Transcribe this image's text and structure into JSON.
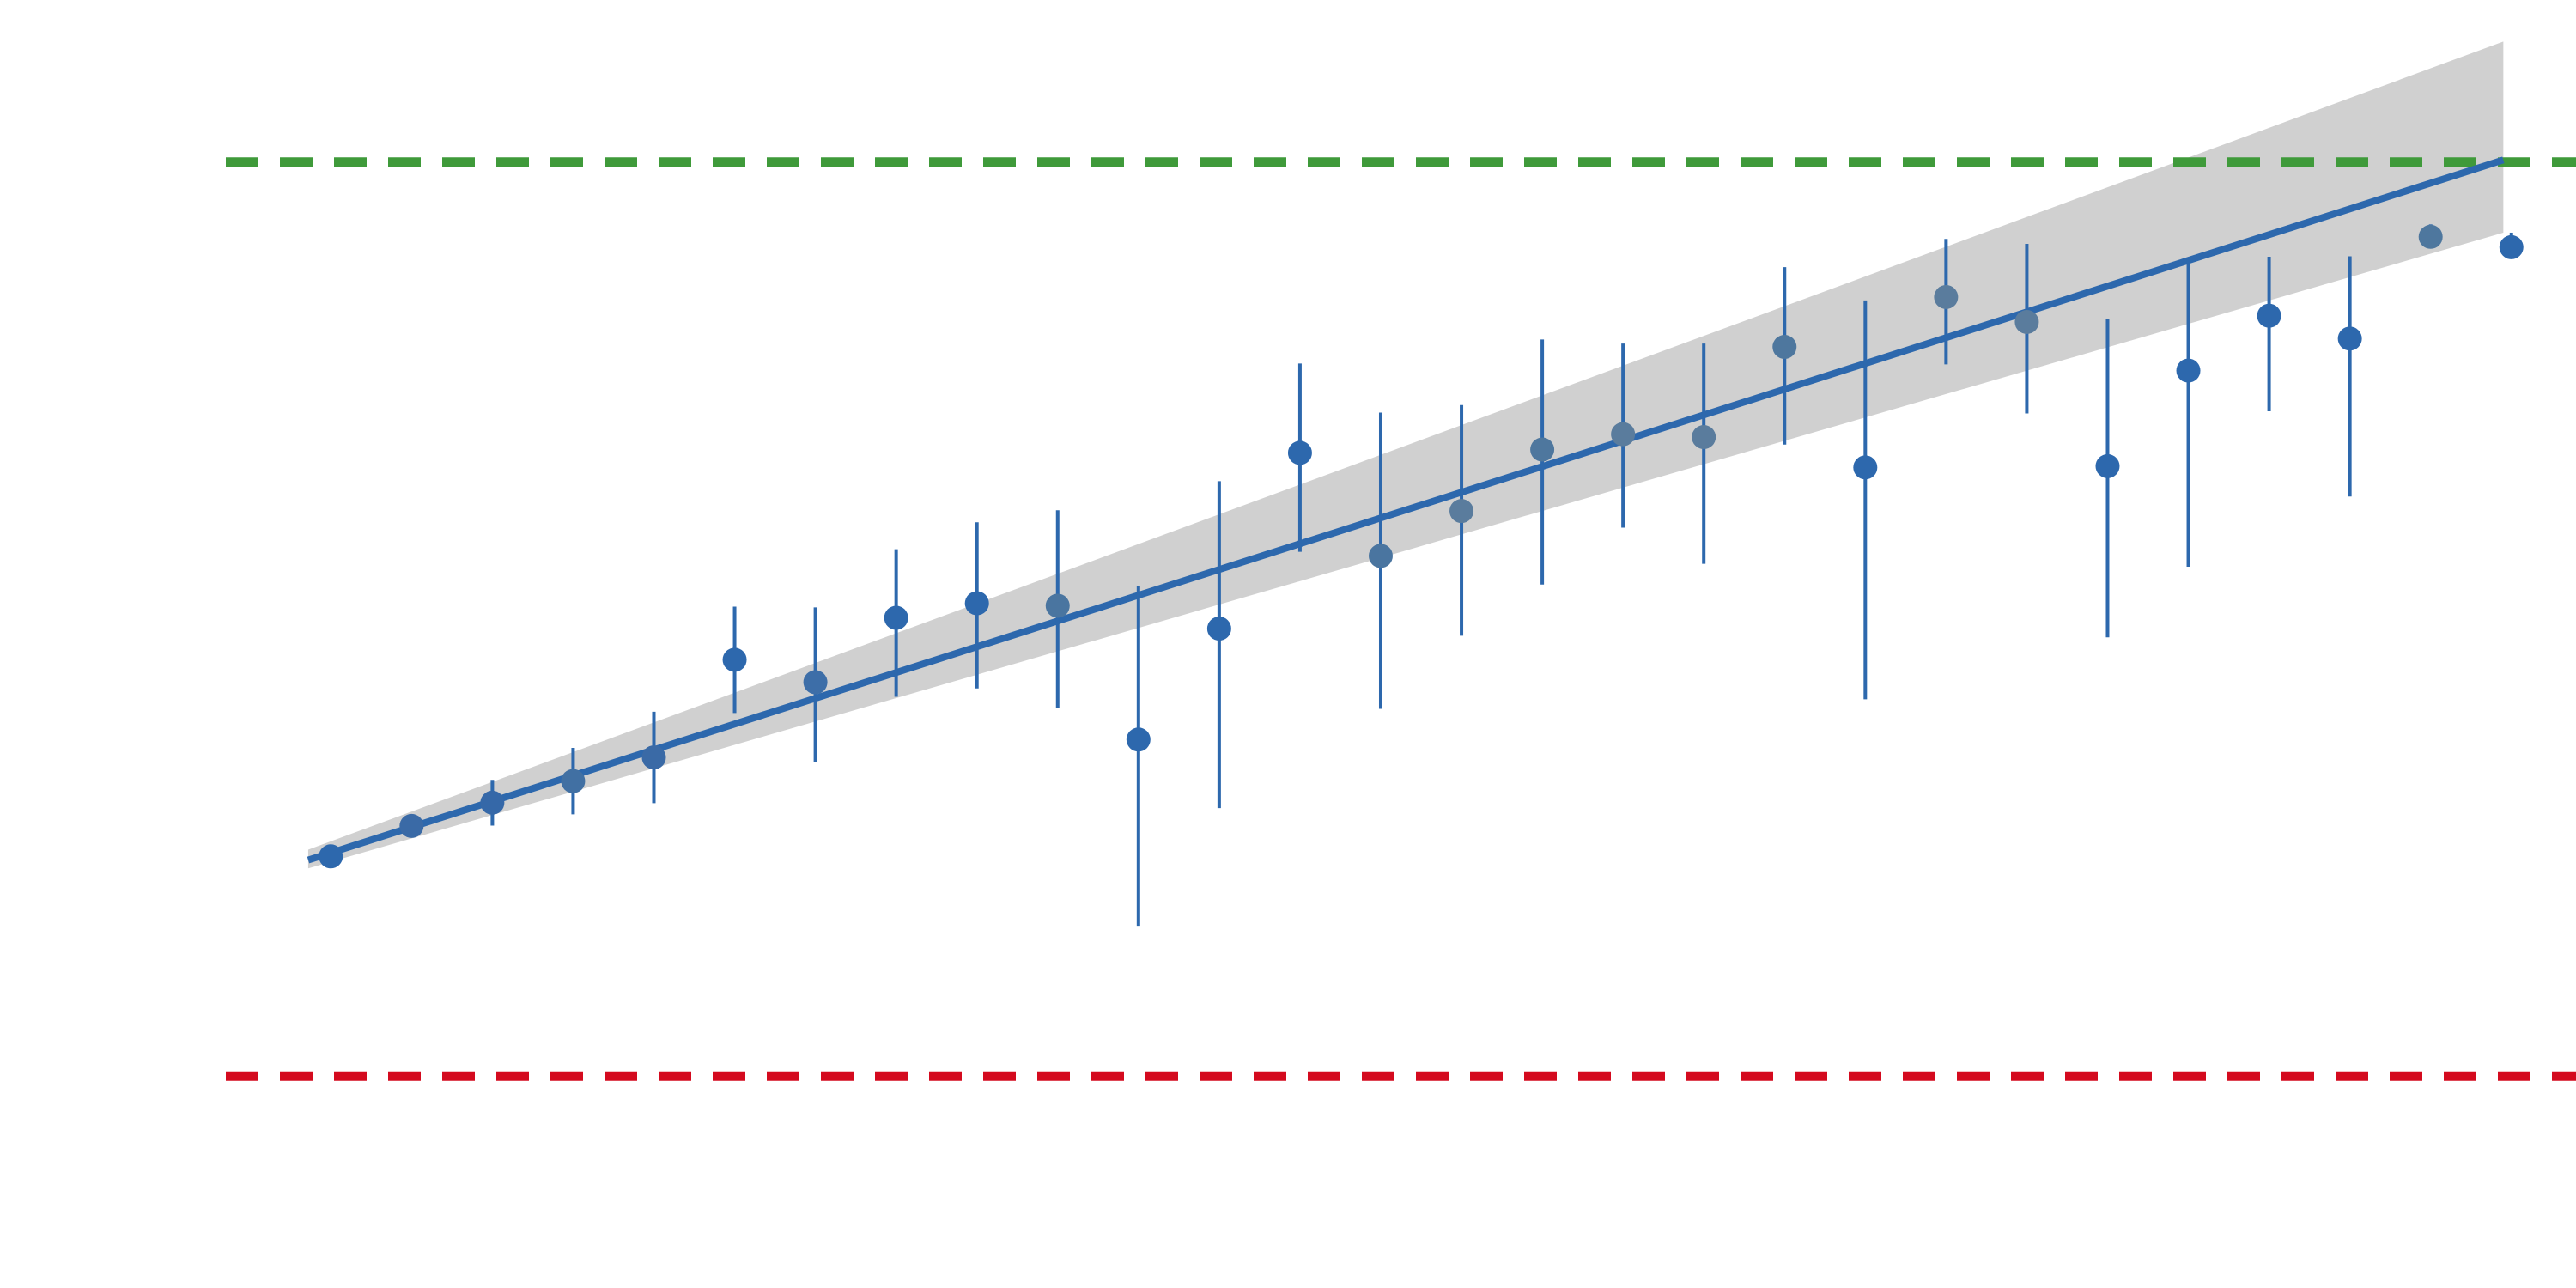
{
  "chart_data": {
    "type": "scatter",
    "title": "",
    "xlabel": "",
    "ylabel": "",
    "grid": false,
    "xlim": [
      -0.3,
      28.8
    ],
    "ylim": [
      -1.05,
      2.05
    ],
    "points": [
      {
        "x": 1,
        "y": -0.011,
        "err_lo": 0.0,
        "err_hi": 0.0,
        "color": "#2d68ad"
      },
      {
        "x": 2,
        "y": 0.062,
        "err_lo": 0.0,
        "err_hi": 0.018,
        "color": "#3a6aa6"
      },
      {
        "x": 3,
        "y": 0.118,
        "err_lo": 0.055,
        "err_hi": 0.055,
        "color": "#3568a8"
      },
      {
        "x": 4,
        "y": 0.17,
        "err_lo": 0.08,
        "err_hi": 0.08,
        "color": "#4170a3"
      },
      {
        "x": 5,
        "y": 0.227,
        "err_lo": 0.11,
        "err_hi": 0.11,
        "color": "#3a6aa6"
      },
      {
        "x": 6,
        "y": 0.462,
        "err_lo": 0.128,
        "err_hi": 0.128,
        "color": "#2d68ad"
      },
      {
        "x": 7,
        "y": 0.408,
        "err_lo": 0.192,
        "err_hi": 0.18,
        "color": "#3d6ea8"
      },
      {
        "x": 8,
        "y": 0.563,
        "err_lo": 0.19,
        "err_hi": 0.165,
        "color": "#2d68ad"
      },
      {
        "x": 9,
        "y": 0.598,
        "err_lo": 0.205,
        "err_hi": 0.195,
        "color": "#2d68ad"
      },
      {
        "x": 10,
        "y": 0.592,
        "err_lo": 0.245,
        "err_hi": 0.23,
        "color": "#4a75a0"
      },
      {
        "x": 11,
        "y": 0.27,
        "err_lo": 0.448,
        "err_hi": 0.37,
        "color": "#2d68ad"
      },
      {
        "x": 12,
        "y": 0.537,
        "err_lo": 0.432,
        "err_hi": 0.355,
        "color": "#2d68ad"
      },
      {
        "x": 13,
        "y": 0.96,
        "err_lo": 0.238,
        "err_hi": 0.215,
        "color": "#2d68ad"
      },
      {
        "x": 14,
        "y": 0.712,
        "err_lo": 0.368,
        "err_hi": 0.345,
        "color": "#4a75a0"
      },
      {
        "x": 15,
        "y": 0.82,
        "err_lo": 0.3,
        "err_hi": 0.255,
        "color": "#5a7c9d"
      },
      {
        "x": 16,
        "y": 0.968,
        "err_lo": 0.325,
        "err_hi": 0.265,
        "color": "#4e779e"
      },
      {
        "x": 17,
        "y": 1.005,
        "err_lo": 0.225,
        "err_hi": 0.218,
        "color": "#5a7c9d"
      },
      {
        "x": 18,
        "y": 0.998,
        "err_lo": 0.305,
        "err_hi": 0.225,
        "color": "#5a7c9d"
      },
      {
        "x": 19,
        "y": 1.215,
        "err_lo": 0.235,
        "err_hi": 0.192,
        "color": "#4e779e"
      },
      {
        "x": 20,
        "y": 0.925,
        "err_lo": 0.558,
        "err_hi": 0.402,
        "color": "#2d68ad"
      },
      {
        "x": 21,
        "y": 1.335,
        "err_lo": 0.162,
        "err_hi": 0.14,
        "color": "#5a7c9d"
      },
      {
        "x": 22,
        "y": 1.275,
        "err_lo": 0.22,
        "err_hi": 0.188,
        "color": "#5a7c9d"
      },
      {
        "x": 23,
        "y": 0.928,
        "err_lo": 0.412,
        "err_hi": 0.355,
        "color": "#2d68ad"
      },
      {
        "x": 24,
        "y": 1.158,
        "err_lo": 0.472,
        "err_hi": 0.27,
        "color": "#2d68ad"
      },
      {
        "x": 25,
        "y": 1.29,
        "err_lo": 0.23,
        "err_hi": 0.142,
        "color": "#2d68ad"
      },
      {
        "x": 26,
        "y": 1.235,
        "err_lo": 0.38,
        "err_hi": 0.198,
        "color": "#2d68ad"
      },
      {
        "x": 27,
        "y": 1.48,
        "err_lo": 0.01,
        "err_hi": 0.03,
        "color": "#4e779e"
      },
      {
        "x": 28,
        "y": 1.455,
        "err_lo": 0.02,
        "err_hi": 0.035,
        "color": "#2d68ad"
      }
    ],
    "fit_line": {
      "x": [
        0.72,
        27.9
      ],
      "y": [
        -0.02,
        1.665
      ],
      "color": "#2d68ad"
    },
    "confidence_band": {
      "x": [
        0.72,
        27.9
      ],
      "lower": [
        -0.04,
        1.49
      ],
      "upper": [
        0.005,
        1.95
      ],
      "color": "#d0d0d0"
    },
    "reference_lines": [
      {
        "name": "upper_bound",
        "y": 1.66,
        "color": "#3f9a3a",
        "style": "dashed"
      },
      {
        "name": "lower_bound",
        "y": -0.54,
        "color": "#d40a1e",
        "style": "dashed"
      }
    ]
  }
}
